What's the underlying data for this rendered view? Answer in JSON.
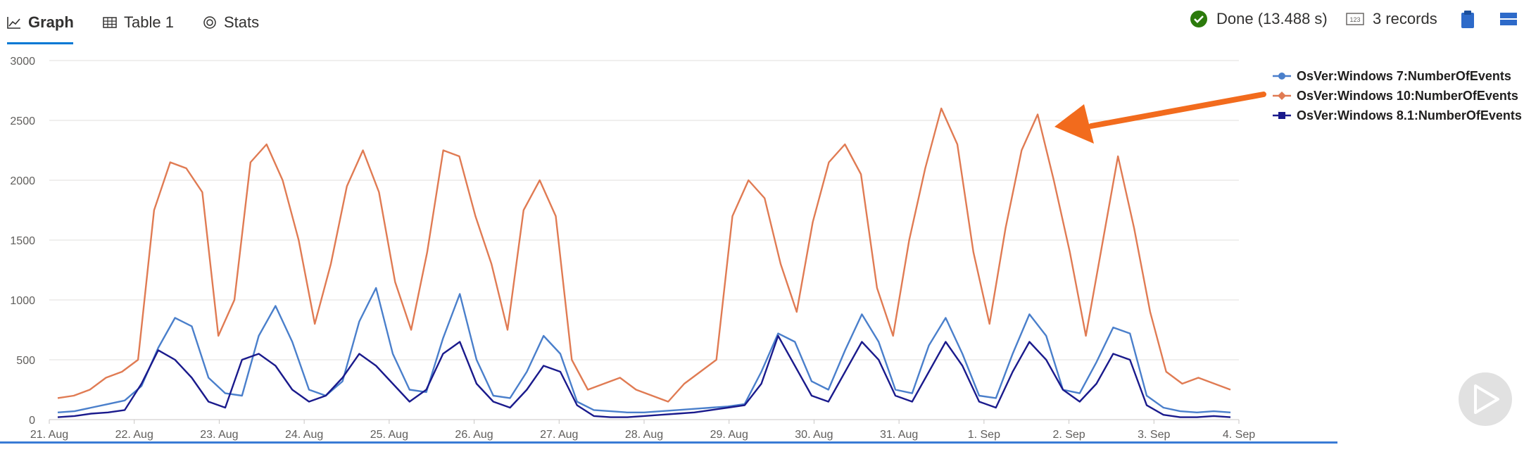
{
  "tabs": [
    {
      "label": "Graph",
      "icon": "line-chart-icon",
      "active": true
    },
    {
      "label": "Table 1",
      "icon": "table-icon",
      "active": false
    },
    {
      "label": "Stats",
      "icon": "stats-icon",
      "active": false
    }
  ],
  "status": {
    "done_label": "Done (13.488 s)",
    "records_label": "3 records",
    "done_icon": "check-circle-icon",
    "records_icon": "records-icon",
    "copy_icon": "clipboard-icon",
    "menu_icon": "hamburger-menu-icon",
    "done_color": "#2b7a0b"
  },
  "chart_data": {
    "type": "line",
    "ylim": [
      0,
      3000
    ],
    "yticks": [
      "0",
      "500",
      "1000",
      "1500",
      "2000",
      "2500",
      "3000"
    ],
    "xticks": [
      "21. Aug",
      "22. Aug",
      "23. Aug",
      "24. Aug",
      "25. Aug",
      "26. Aug",
      "27. Aug",
      "28. Aug",
      "29. Aug",
      "30. Aug",
      "31. Aug",
      "1. Sep",
      "2. Sep",
      "3. Sep",
      "4. Sep"
    ],
    "grid": true,
    "legend_position": "top-right",
    "series": [
      {
        "name": "OsVer:Windows 7:NumberOfEvents",
        "color": "#4a7fcb",
        "marker": "circle",
        "values": [
          60,
          70,
          100,
          130,
          160,
          280,
          600,
          850,
          780,
          350,
          220,
          200,
          700,
          950,
          650,
          250,
          200,
          320,
          820,
          1100,
          550,
          250,
          230,
          680,
          1050,
          500,
          200,
          180,
          400,
          700,
          550,
          150,
          80,
          70,
          60,
          60,
          70,
          80,
          90,
          100,
          110,
          130,
          400,
          720,
          650,
          320,
          250,
          580,
          880,
          650,
          250,
          220,
          620,
          850,
          550,
          200,
          180,
          550,
          880,
          700,
          250,
          220,
          480,
          770,
          720,
          200,
          100,
          70,
          60,
          70,
          60
        ]
      },
      {
        "name": "OsVer:Windows 10:NumberOfEvents",
        "color": "#e07b53",
        "marker": "diamond",
        "values": [
          180,
          200,
          250,
          350,
          400,
          500,
          1750,
          2150,
          2100,
          1900,
          700,
          1000,
          2150,
          2300,
          2000,
          1500,
          800,
          1300,
          1950,
          2250,
          1900,
          1150,
          750,
          1400,
          2250,
          2200,
          1700,
          1300,
          750,
          1750,
          2000,
          1700,
          500,
          250,
          300,
          350,
          250,
          200,
          150,
          300,
          400,
          500,
          1700,
          2000,
          1850,
          1300,
          900,
          1650,
          2150,
          2300,
          2050,
          1100,
          700,
          1500,
          2100,
          2600,
          2300,
          1400,
          800,
          1600,
          2250,
          2550,
          2000,
          1400,
          700,
          1450,
          2200,
          1600,
          900,
          400,
          300,
          350,
          300,
          250
        ]
      },
      {
        "name": "OsVer:Windows 8.1:NumberOfEvents",
        "color": "#1a1a8c",
        "marker": "square",
        "values": [
          20,
          30,
          50,
          60,
          80,
          300,
          580,
          500,
          350,
          150,
          100,
          500,
          550,
          450,
          250,
          150,
          200,
          350,
          550,
          450,
          300,
          150,
          250,
          550,
          650,
          300,
          150,
          100,
          250,
          450,
          400,
          120,
          30,
          20,
          20,
          30,
          40,
          50,
          60,
          80,
          100,
          120,
          300,
          700,
          450,
          200,
          150,
          400,
          650,
          500,
          200,
          150,
          400,
          650,
          450,
          150,
          100,
          400,
          650,
          500,
          250,
          150,
          300,
          550,
          500,
          120,
          40,
          20,
          20,
          30,
          20
        ]
      }
    ]
  },
  "annotation": {
    "arrow_color": "#f26b1d",
    "arrow_icon": "arrow-pointer-icon"
  },
  "play_icon": "play-icon"
}
